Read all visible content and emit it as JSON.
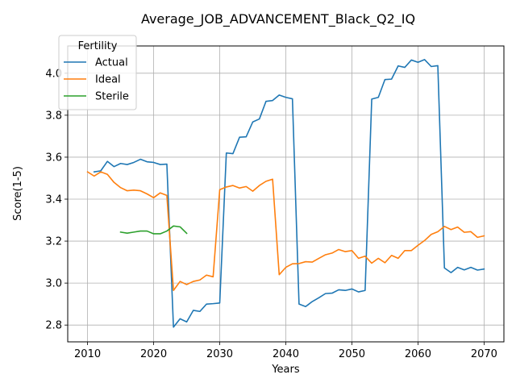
{
  "chart_data": {
    "type": "line",
    "title": "Average_JOB_ADVANCEMENT_Black_Q2_IQ",
    "xlabel": "Years",
    "ylabel": "Score(1-5)",
    "xlim": [
      2007,
      2073
    ],
    "ylim": [
      2.72,
      4.13
    ],
    "xticks": [
      2010,
      2020,
      2030,
      2040,
      2050,
      2060,
      2070
    ],
    "yticks": [
      2.8,
      3.0,
      3.2,
      3.4,
      3.6,
      3.8,
      4.0
    ],
    "xtick_labels": [
      "2010",
      "2020",
      "2030",
      "2040",
      "2050",
      "2060",
      "2070"
    ],
    "ytick_labels": [
      "2.8",
      "3.0",
      "3.2",
      "3.4",
      "3.6",
      "3.8",
      "4.0"
    ],
    "grid": true,
    "legend": {
      "title": "Fertility",
      "placement": "upper-left"
    },
    "series": [
      {
        "name": "Actual",
        "color": "#1f77b4",
        "x": [
          2011,
          2012,
          2013,
          2014,
          2015,
          2016,
          2017,
          2018,
          2019,
          2020,
          2021,
          2022,
          2023,
          2024,
          2025,
          2026,
          2027,
          2028,
          2029,
          2030,
          2031,
          2032,
          2033,
          2034,
          2035,
          2036,
          2037,
          2038,
          2039,
          2040,
          2041,
          2042,
          2043,
          2044,
          2045,
          2046,
          2047,
          2048,
          2049,
          2050,
          2051,
          2052,
          2053,
          2054,
          2055,
          2056,
          2057,
          2058,
          2059,
          2060,
          2061,
          2062,
          2063,
          2064,
          2065,
          2066,
          2067,
          2068,
          2069,
          2070
        ],
        "y": [
          3.53,
          3.535,
          3.58,
          3.555,
          3.57,
          3.565,
          3.575,
          3.59,
          3.578,
          3.575,
          3.565,
          3.567,
          2.79,
          2.83,
          2.815,
          2.87,
          2.865,
          2.9,
          2.902,
          2.905,
          3.62,
          3.617,
          3.695,
          3.697,
          3.768,
          3.782,
          3.866,
          3.87,
          3.896,
          3.885,
          3.878,
          2.9,
          2.888,
          2.912,
          2.93,
          2.95,
          2.952,
          2.968,
          2.965,
          2.972,
          2.958,
          2.965,
          3.877,
          3.885,
          3.97,
          3.972,
          4.035,
          4.028,
          4.063,
          4.052,
          4.065,
          4.032,
          4.036,
          3.072,
          3.05,
          3.075,
          3.063,
          3.075,
          3.062,
          3.067
        ]
      },
      {
        "name": "Ideal",
        "color": "#ff7f0e",
        "x": [
          2010,
          2011,
          2012,
          2013,
          2014,
          2015,
          2016,
          2017,
          2018,
          2019,
          2020,
          2021,
          2022,
          2023,
          2024,
          2025,
          2026,
          2027,
          2028,
          2029,
          2030,
          2031,
          2032,
          2033,
          2034,
          2035,
          2036,
          2037,
          2038,
          2039,
          2040,
          2041,
          2042,
          2043,
          2044,
          2045,
          2046,
          2047,
          2048,
          2049,
          2050,
          2051,
          2052,
          2053,
          2054,
          2055,
          2056,
          2057,
          2058,
          2059,
          2060,
          2061,
          2062,
          2063,
          2064,
          2065,
          2066,
          2067,
          2068,
          2069,
          2070
        ],
        "y": [
          3.53,
          3.51,
          3.53,
          3.518,
          3.48,
          3.455,
          3.44,
          3.443,
          3.44,
          3.425,
          3.407,
          3.43,
          3.418,
          2.965,
          3.008,
          2.993,
          3.008,
          3.015,
          3.038,
          3.03,
          3.445,
          3.458,
          3.465,
          3.453,
          3.46,
          3.438,
          3.465,
          3.485,
          3.495,
          3.04,
          3.075,
          3.092,
          3.093,
          3.102,
          3.1,
          3.118,
          3.135,
          3.143,
          3.16,
          3.15,
          3.155,
          3.118,
          3.128,
          3.095,
          3.118,
          3.097,
          3.132,
          3.118,
          3.155,
          3.155,
          3.18,
          3.203,
          3.232,
          3.245,
          3.27,
          3.255,
          3.267,
          3.242,
          3.245,
          3.218,
          3.225
        ]
      },
      {
        "name": "Sterile",
        "color": "#2ca02c",
        "x": [
          2015,
          2016,
          2017,
          2018,
          2019,
          2020,
          2021,
          2022,
          2023,
          2024,
          2025
        ],
        "y": [
          3.243,
          3.238,
          3.243,
          3.248,
          3.248,
          3.235,
          3.235,
          3.248,
          3.272,
          3.268,
          3.237
        ]
      }
    ]
  }
}
